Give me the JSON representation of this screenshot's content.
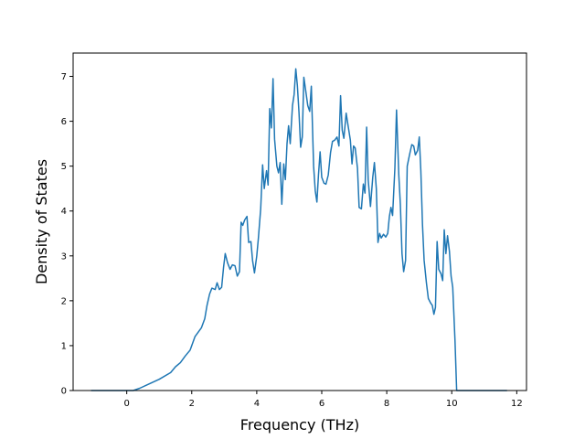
{
  "chart_data": {
    "type": "line",
    "title": "",
    "xlabel": "Frequency (THz)",
    "ylabel": "Density of States",
    "xlim": [
      -1.65,
      12.3
    ],
    "ylim": [
      0,
      7.52
    ],
    "xticks": [
      0,
      2,
      4,
      6,
      8,
      10,
      12
    ],
    "yticks": [
      0,
      1,
      2,
      3,
      4,
      5,
      6,
      7
    ],
    "grid": false,
    "legend": "none",
    "series": [
      {
        "color": "#1f77b4",
        "points": [
          [
            -1.1,
            0
          ],
          [
            0.2,
            0
          ],
          [
            0.4,
            0.05
          ],
          [
            0.7,
            0.15
          ],
          [
            1.0,
            0.25
          ],
          [
            1.35,
            0.4
          ],
          [
            1.5,
            0.53
          ],
          [
            1.65,
            0.62
          ],
          [
            1.8,
            0.77
          ],
          [
            1.95,
            0.9
          ],
          [
            2.1,
            1.2
          ],
          [
            2.3,
            1.4
          ],
          [
            2.4,
            1.6
          ],
          [
            2.47,
            1.9
          ],
          [
            2.55,
            2.15
          ],
          [
            2.62,
            2.28
          ],
          [
            2.72,
            2.25
          ],
          [
            2.78,
            2.4
          ],
          [
            2.85,
            2.25
          ],
          [
            2.92,
            2.3
          ],
          [
            2.98,
            2.75
          ],
          [
            3.03,
            3.05
          ],
          [
            3.1,
            2.85
          ],
          [
            3.18,
            2.7
          ],
          [
            3.25,
            2.8
          ],
          [
            3.33,
            2.78
          ],
          [
            3.4,
            2.55
          ],
          [
            3.47,
            2.65
          ],
          [
            3.52,
            3.75
          ],
          [
            3.57,
            3.68
          ],
          [
            3.63,
            3.8
          ],
          [
            3.7,
            3.88
          ],
          [
            3.75,
            3.3
          ],
          [
            3.82,
            3.32
          ],
          [
            3.87,
            2.9
          ],
          [
            3.93,
            2.62
          ],
          [
            4.0,
            3.0
          ],
          [
            4.05,
            3.4
          ],
          [
            4.12,
            4.05
          ],
          [
            4.18,
            5.03
          ],
          [
            4.23,
            4.5
          ],
          [
            4.3,
            4.9
          ],
          [
            4.35,
            4.58
          ],
          [
            4.4,
            6.28
          ],
          [
            4.45,
            5.85
          ],
          [
            4.5,
            6.95
          ],
          [
            4.55,
            5.6
          ],
          [
            4.62,
            5.0
          ],
          [
            4.67,
            4.85
          ],
          [
            4.72,
            5.08
          ],
          [
            4.77,
            4.15
          ],
          [
            4.83,
            5.05
          ],
          [
            4.88,
            4.7
          ],
          [
            4.93,
            5.5
          ],
          [
            4.98,
            5.9
          ],
          [
            5.03,
            5.5
          ],
          [
            5.1,
            6.35
          ],
          [
            5.15,
            6.6
          ],
          [
            5.2,
            7.17
          ],
          [
            5.25,
            6.8
          ],
          [
            5.3,
            6.2
          ],
          [
            5.35,
            5.42
          ],
          [
            5.4,
            5.65
          ],
          [
            5.45,
            6.98
          ],
          [
            5.5,
            6.72
          ],
          [
            5.57,
            6.35
          ],
          [
            5.63,
            6.22
          ],
          [
            5.68,
            6.78
          ],
          [
            5.75,
            5.0
          ],
          [
            5.8,
            4.45
          ],
          [
            5.85,
            4.2
          ],
          [
            5.9,
            4.8
          ],
          [
            5.95,
            5.32
          ],
          [
            6.0,
            4.75
          ],
          [
            6.07,
            4.62
          ],
          [
            6.13,
            4.6
          ],
          [
            6.2,
            4.8
          ],
          [
            6.27,
            5.3
          ],
          [
            6.33,
            5.55
          ],
          [
            6.4,
            5.58
          ],
          [
            6.47,
            5.65
          ],
          [
            6.53,
            5.45
          ],
          [
            6.58,
            6.57
          ],
          [
            6.63,
            5.8
          ],
          [
            6.68,
            5.62
          ],
          [
            6.75,
            6.18
          ],
          [
            6.82,
            5.85
          ],
          [
            6.88,
            5.58
          ],
          [
            6.93,
            5.05
          ],
          [
            6.98,
            5.45
          ],
          [
            7.03,
            5.4
          ],
          [
            7.1,
            4.95
          ],
          [
            7.15,
            4.08
          ],
          [
            7.22,
            4.05
          ],
          [
            7.28,
            4.6
          ],
          [
            7.33,
            4.4
          ],
          [
            7.38,
            5.87
          ],
          [
            7.43,
            4.7
          ],
          [
            7.5,
            4.1
          ],
          [
            7.57,
            4.75
          ],
          [
            7.62,
            5.08
          ],
          [
            7.68,
            4.5
          ],
          [
            7.73,
            3.3
          ],
          [
            7.78,
            3.5
          ],
          [
            7.83,
            3.4
          ],
          [
            7.9,
            3.48
          ],
          [
            7.97,
            3.42
          ],
          [
            8.03,
            3.5
          ],
          [
            8.08,
            3.88
          ],
          [
            8.13,
            4.08
          ],
          [
            8.18,
            3.9
          ],
          [
            8.25,
            4.95
          ],
          [
            8.3,
            6.25
          ],
          [
            8.37,
            4.8
          ],
          [
            8.42,
            4.15
          ],
          [
            8.47,
            3.05
          ],
          [
            8.52,
            2.65
          ],
          [
            8.58,
            2.9
          ],
          [
            8.63,
            5.0
          ],
          [
            8.7,
            5.25
          ],
          [
            8.77,
            5.48
          ],
          [
            8.83,
            5.45
          ],
          [
            8.88,
            5.25
          ],
          [
            8.95,
            5.35
          ],
          [
            9.0,
            5.65
          ],
          [
            9.05,
            4.9
          ],
          [
            9.1,
            3.7
          ],
          [
            9.15,
            2.9
          ],
          [
            9.22,
            2.4
          ],
          [
            9.28,
            2.05
          ],
          [
            9.35,
            1.95
          ],
          [
            9.4,
            1.9
          ],
          [
            9.45,
            1.7
          ],
          [
            9.5,
            1.85
          ],
          [
            9.55,
            3.32
          ],
          [
            9.6,
            2.7
          ],
          [
            9.67,
            2.6
          ],
          [
            9.72,
            2.45
          ],
          [
            9.77,
            3.58
          ],
          [
            9.82,
            3.05
          ],
          [
            9.87,
            3.45
          ],
          [
            9.93,
            3.1
          ],
          [
            9.98,
            2.55
          ],
          [
            10.03,
            2.3
          ],
          [
            10.1,
            1.1
          ],
          [
            10.15,
            0
          ],
          [
            10.6,
            0
          ],
          [
            11.2,
            0
          ],
          [
            11.7,
            0
          ]
        ]
      }
    ]
  }
}
